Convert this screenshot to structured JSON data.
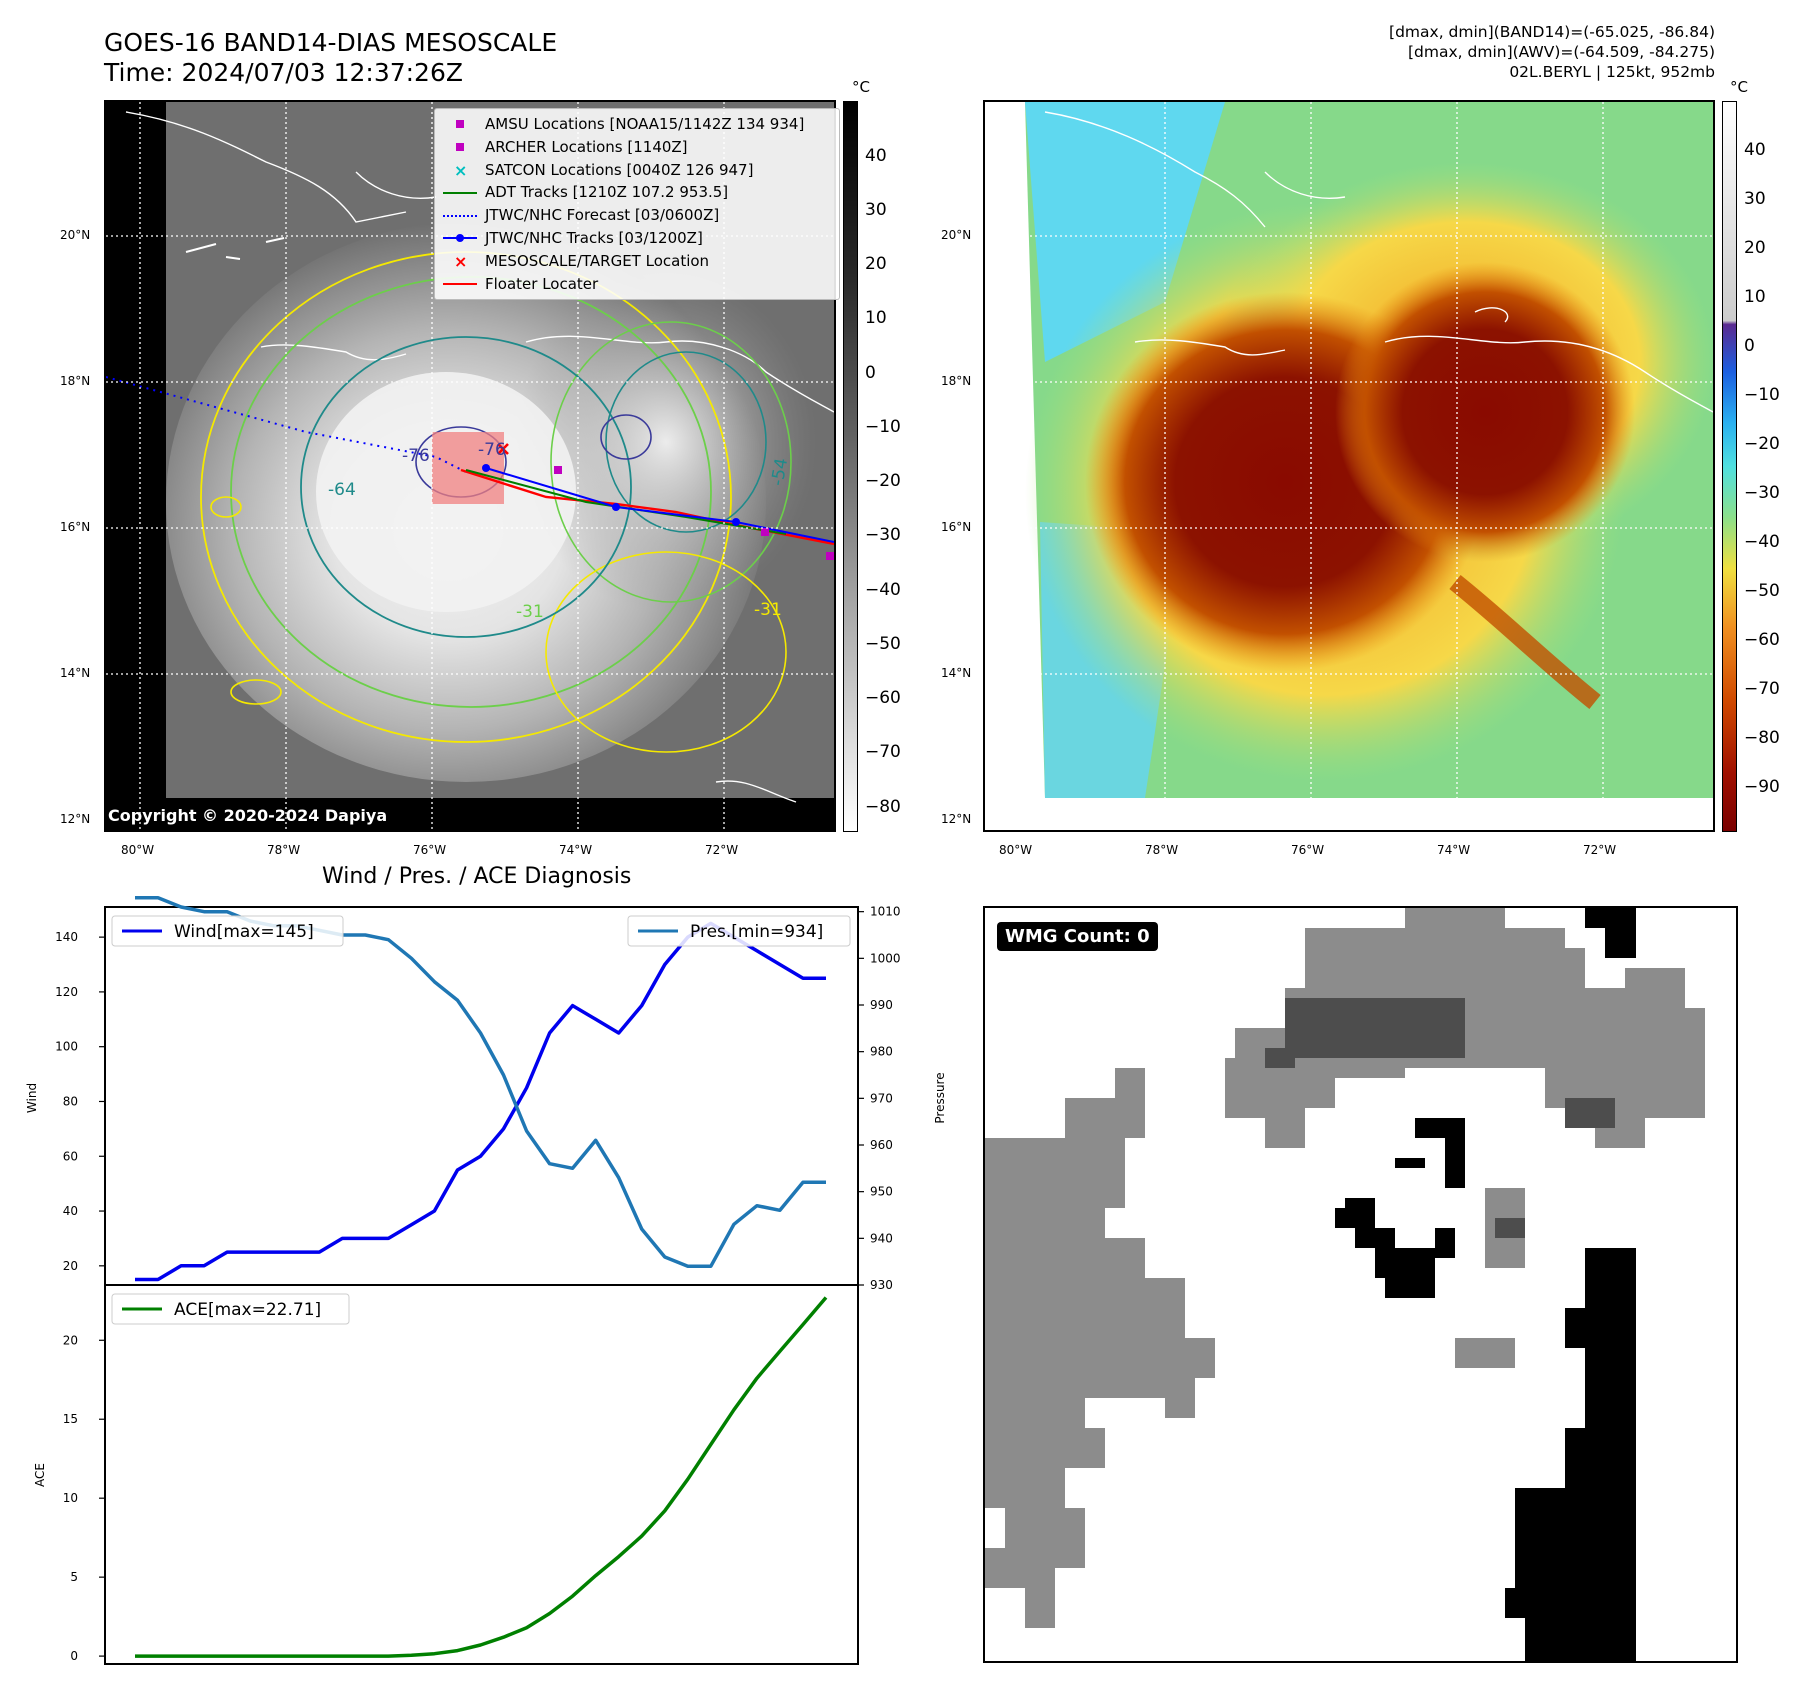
{
  "header": {
    "title_line1": "GOES-16 BAND14-DIAS MESOSCALE",
    "title_line2": "Time: 2024/07/03 12:37:26Z",
    "right_line1": "[dmax, dmin](BAND14)=(-65.025, -86.84)",
    "right_line2": "[dmax, dmin](AWV)=(-64.509, -84.275)",
    "right_line3": "02L.BERYL | 125kt, 952mb"
  },
  "ir_map": {
    "lat_labels": [
      "20°N",
      "18°N",
      "16°N",
      "14°N",
      "12°N"
    ],
    "lon_labels": [
      "80°W",
      "78°W",
      "76°W",
      "74°W",
      "72°W"
    ],
    "copyright": "Copyright © 2020-2024 Dapiya",
    "contour_labels": [
      "-76",
      "-76",
      "-64",
      "-54",
      "-31",
      "-31"
    ],
    "legend": [
      {
        "label": "AMSU Locations [NOAA15/1142Z 134 934]",
        "icon": "square-marker",
        "color": "#c000c0"
      },
      {
        "label": "ARCHER Locations [1140Z]",
        "icon": "square-marker",
        "color": "#c000c0"
      },
      {
        "label": "SATCON Locations [0040Z 126 947]",
        "icon": "x-marker",
        "color": "#00bfbf"
      },
      {
        "label": "ADT Tracks [1210Z 107.2 953.5]",
        "icon": "line",
        "color": "#007f00"
      },
      {
        "label": "JTWC/NHC Forecast [03/0600Z]",
        "icon": "dotted-line",
        "color": "#0000ff"
      },
      {
        "label": "JTWC/NHC Tracks [03/1200Z]",
        "icon": "line-dot",
        "color": "#0000ff"
      },
      {
        "label": "MESOSCALE/TARGET Location",
        "icon": "x-marker",
        "color": "#ff0000"
      },
      {
        "label": "Floater Locater",
        "icon": "line",
        "color": "#ff0000"
      }
    ],
    "colorbar_unit": "°C",
    "colorbar_ticks": [
      "40",
      "30",
      "20",
      "10",
      "0",
      "−10",
      "−20",
      "−30",
      "−40",
      "−50",
      "−60",
      "−70",
      "−80"
    ]
  },
  "awv_map": {
    "lat_labels": [
      "20°N",
      "18°N",
      "16°N",
      "14°N",
      "12°N"
    ],
    "lon_labels": [
      "80°W",
      "78°W",
      "76°W",
      "74°W",
      "72°W"
    ],
    "colorbar_unit": "°C",
    "colorbar_ticks": [
      "40",
      "30",
      "20",
      "10",
      "0",
      "−10",
      "−20",
      "−30",
      "−40",
      "−50",
      "−60",
      "−70",
      "−80",
      "−90"
    ]
  },
  "wmg": {
    "badge": "WMG Count: 0"
  },
  "chart_data": [
    {
      "type": "line",
      "title": "Wind / Pres. / ACE Diagnosis",
      "ylabel": "Wind",
      "ylabel_right": "Pressure",
      "ylim": [
        13,
        151
      ],
      "ylim_right": [
        930,
        1011
      ],
      "yticks": [
        20,
        40,
        60,
        80,
        100,
        120,
        140
      ],
      "yticks_right": [
        930,
        940,
        950,
        960,
        970,
        980,
        990,
        1000,
        1010
      ],
      "series": [
        {
          "name": "Wind[max=145]",
          "color": "#0000ee",
          "axis": "left",
          "values": [
            15,
            15,
            20,
            20,
            25,
            25,
            25,
            25,
            25,
            30,
            30,
            30,
            35,
            40,
            55,
            60,
            70,
            85,
            105,
            115,
            110,
            105,
            115,
            130,
            140,
            145,
            140,
            135,
            130,
            125,
            125
          ]
        },
        {
          "name": "Pres.[min=934]",
          "color": "#1f77b4",
          "axis": "right",
          "values": [
            1013,
            1013,
            1011,
            1010,
            1010,
            1008,
            1007,
            1007,
            1006,
            1005,
            1005,
            1004,
            1000,
            995,
            991,
            984,
            975,
            963,
            956,
            955,
            961,
            953,
            942,
            936,
            934,
            934,
            943,
            947,
            946,
            952,
            952
          ]
        }
      ]
    },
    {
      "type": "line",
      "title": "",
      "ylabel": "ACE",
      "ylim": [
        -0.5,
        23.5
      ],
      "yticks": [
        0,
        5,
        10,
        15,
        20
      ],
      "series": [
        {
          "name": "ACE[max=22.71]",
          "color": "#008000",
          "values": [
            0,
            0,
            0,
            0,
            0,
            0,
            0,
            0,
            0,
            0,
            0,
            0,
            0.05,
            0.15,
            0.35,
            0.7,
            1.2,
            1.8,
            2.7,
            3.8,
            5.1,
            6.3,
            7.6,
            9.2,
            11.2,
            13.4,
            15.6,
            17.6,
            19.3,
            21.0,
            22.71
          ]
        }
      ]
    }
  ]
}
